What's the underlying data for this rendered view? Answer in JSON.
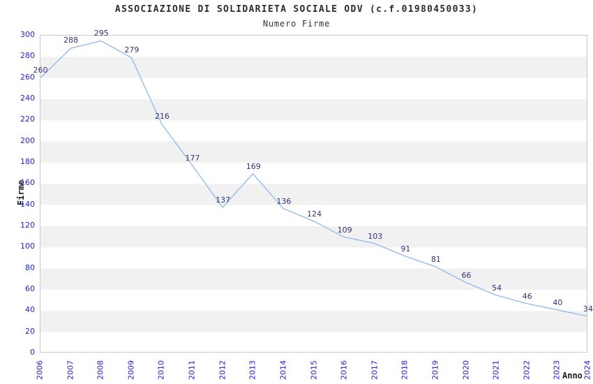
{
  "title": "ASSOCIAZIONE DI SOLIDARIETA SOCIALE ODV (c.f.01980450033)",
  "subtitle": "Numero Firme",
  "chart_data": {
    "type": "line",
    "title": "ASSOCIAZIONE DI SOLIDARIETA SOCIALE ODV (c.f.01980450033)",
    "subtitle": "Numero Firme",
    "xlabel": "Anno",
    "ylabel": "Firme",
    "categories": [
      "2006",
      "2007",
      "2008",
      "2009",
      "2010",
      "2011",
      "2012",
      "2013",
      "2014",
      "2015",
      "2016",
      "2017",
      "2018",
      "2019",
      "2020",
      "2021",
      "2022",
      "2023",
      "2024"
    ],
    "series": [
      {
        "name": "Numero Firme",
        "values": [
          260,
          288,
          295,
          279,
          216,
          177,
          137,
          169,
          136,
          124,
          109,
          103,
          91,
          81,
          66,
          54,
          46,
          40,
          34
        ]
      }
    ],
    "point_labels_shown": true,
    "ylim": [
      0,
      300
    ],
    "ytick_step": 20,
    "yticks": [
      0,
      20,
      40,
      60,
      80,
      100,
      120,
      140,
      160,
      180,
      200,
      220,
      240,
      260,
      280,
      300
    ],
    "x_tick_rotation_deg": -90,
    "grid": "alternating-horizontal-bands",
    "legend": "none",
    "colors": {
      "line": "#8db9ea",
      "band": "#f1f1f1",
      "tick_text": "#2323cd",
      "point_label_text": "#32327a",
      "plot_border": "#c9c9c9",
      "title_text": "#2b2b2b"
    }
  }
}
